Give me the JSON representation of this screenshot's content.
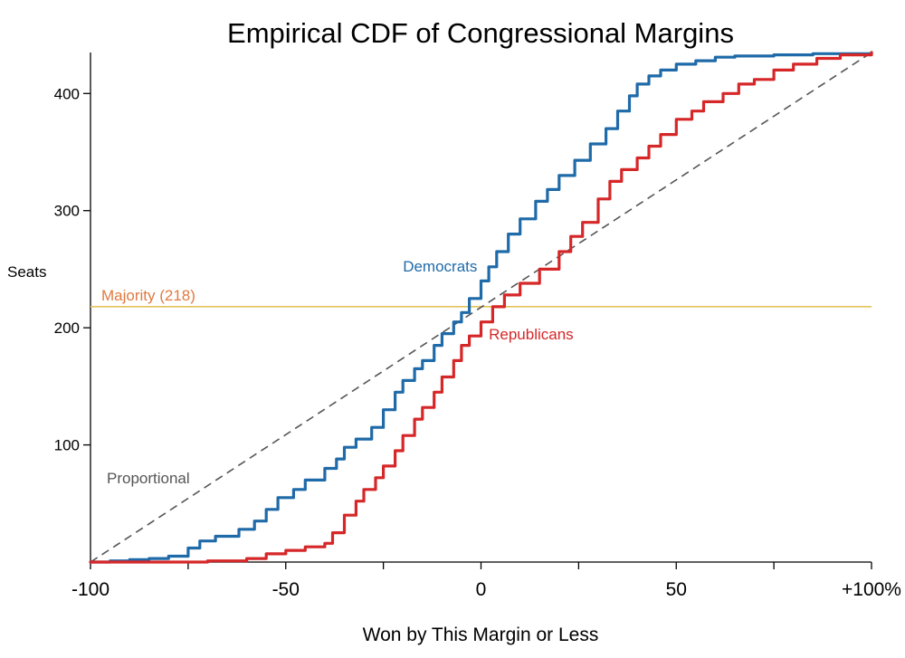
{
  "chart_data": {
    "type": "line",
    "title": "Empirical CDF of Congressional Margins",
    "xlabel": "Won by This Margin or Less",
    "ylabel": "Seats",
    "xlim": [
      -100,
      100
    ],
    "ylim": [
      0,
      435
    ],
    "x_tick_labels": [
      {
        "value": -100,
        "label": "-100"
      },
      {
        "value": -50,
        "label": "-50"
      },
      {
        "value": 0,
        "label": "0"
      },
      {
        "value": 50,
        "label": "50"
      },
      {
        "value": 100,
        "label": "+100%"
      }
    ],
    "x_minor_ticks": [
      -75,
      -25,
      25,
      75
    ],
    "y_tick_labels": [
      {
        "value": 100,
        "label": "100"
      },
      {
        "value": 200,
        "label": "200"
      },
      {
        "value": 300,
        "label": "300"
      },
      {
        "value": 400,
        "label": "400"
      }
    ],
    "grid": false,
    "reference_lines": {
      "majority": {
        "label": "Majority (218)",
        "value": 218,
        "color": "#e2c35a",
        "label_color": "#e07a3f"
      },
      "proportional": {
        "label": "Proportional",
        "from": [
          -100,
          0
        ],
        "to": [
          100,
          435
        ],
        "color": "#555555"
      }
    },
    "series": [
      {
        "name": "Democrats",
        "color": "#1f6aa8",
        "label_pos": [
          -20,
          248
        ],
        "points": [
          [
            -100,
            0
          ],
          [
            -95,
            1
          ],
          [
            -90,
            2
          ],
          [
            -85,
            3
          ],
          [
            -80,
            5
          ],
          [
            -75,
            12
          ],
          [
            -72,
            18
          ],
          [
            -68,
            22
          ],
          [
            -62,
            28
          ],
          [
            -58,
            35
          ],
          [
            -55,
            45
          ],
          [
            -52,
            55
          ],
          [
            -48,
            62
          ],
          [
            -45,
            70
          ],
          [
            -40,
            80
          ],
          [
            -37,
            88
          ],
          [
            -35,
            98
          ],
          [
            -32,
            105
          ],
          [
            -28,
            115
          ],
          [
            -25,
            130
          ],
          [
            -22,
            145
          ],
          [
            -20,
            155
          ],
          [
            -17,
            165
          ],
          [
            -15,
            172
          ],
          [
            -12,
            185
          ],
          [
            -10,
            195
          ],
          [
            -7,
            205
          ],
          [
            -5,
            213
          ],
          [
            -3,
            225
          ],
          [
            0,
            240
          ],
          [
            2,
            252
          ],
          [
            4,
            265
          ],
          [
            7,
            280
          ],
          [
            10,
            293
          ],
          [
            14,
            308
          ],
          [
            17,
            318
          ],
          [
            20,
            330
          ],
          [
            24,
            343
          ],
          [
            28,
            357
          ],
          [
            32,
            370
          ],
          [
            35,
            385
          ],
          [
            38,
            398
          ],
          [
            40,
            408
          ],
          [
            43,
            415
          ],
          [
            46,
            420
          ],
          [
            50,
            425
          ],
          [
            55,
            428
          ],
          [
            60,
            431
          ],
          [
            65,
            432
          ],
          [
            75,
            433
          ],
          [
            85,
            434
          ],
          [
            100,
            435
          ]
        ]
      },
      {
        "name": "Republicans",
        "color": "#d62728",
        "label_pos": [
          2,
          190
        ],
        "points": [
          [
            -100,
            0
          ],
          [
            -80,
            0
          ],
          [
            -70,
            1
          ],
          [
            -60,
            3
          ],
          [
            -55,
            7
          ],
          [
            -50,
            10
          ],
          [
            -45,
            13
          ],
          [
            -40,
            16
          ],
          [
            -38,
            25
          ],
          [
            -35,
            40
          ],
          [
            -32,
            52
          ],
          [
            -30,
            62
          ],
          [
            -27,
            72
          ],
          [
            -25,
            82
          ],
          [
            -22,
            95
          ],
          [
            -20,
            108
          ],
          [
            -17,
            122
          ],
          [
            -15,
            132
          ],
          [
            -12,
            145
          ],
          [
            -10,
            158
          ],
          [
            -7,
            172
          ],
          [
            -5,
            185
          ],
          [
            -3,
            193
          ],
          [
            0,
            205
          ],
          [
            3,
            218
          ],
          [
            6,
            228
          ],
          [
            10,
            238
          ],
          [
            15,
            250
          ],
          [
            20,
            265
          ],
          [
            23,
            278
          ],
          [
            26,
            290
          ],
          [
            30,
            310
          ],
          [
            33,
            325
          ],
          [
            36,
            335
          ],
          [
            40,
            345
          ],
          [
            43,
            355
          ],
          [
            46,
            365
          ],
          [
            50,
            378
          ],
          [
            54,
            385
          ],
          [
            57,
            393
          ],
          [
            62,
            400
          ],
          [
            66,
            408
          ],
          [
            70,
            412
          ],
          [
            75,
            420
          ],
          [
            80,
            425
          ],
          [
            86,
            430
          ],
          [
            92,
            433
          ],
          [
            100,
            435
          ]
        ]
      }
    ]
  }
}
